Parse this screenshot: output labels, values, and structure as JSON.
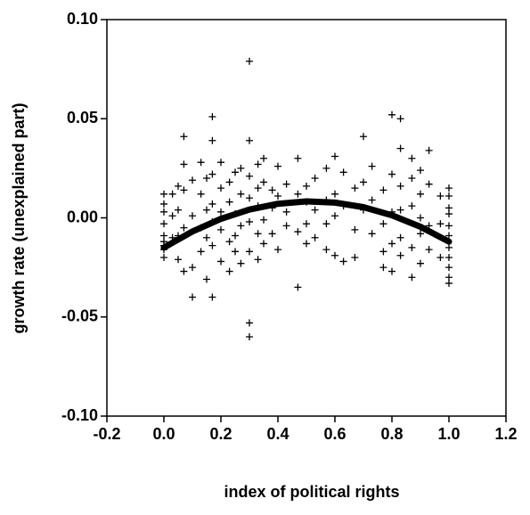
{
  "chart_data": {
    "type": "scatter",
    "xlabel": "index of political rights",
    "ylabel": "growth rate (unexplained part)",
    "xlim": [
      -0.2,
      1.2
    ],
    "ylim": [
      -0.1,
      0.1
    ],
    "xticks": [
      -0.2,
      {
        "value": 0,
        "label": "0.0"
      },
      0.2,
      0.4,
      0.6,
      0.8,
      {
        "value": 1,
        "label": "1.0"
      },
      1.2
    ],
    "yticks": [
      {
        "value": -0.1,
        "label": "-0.10"
      },
      -0.05,
      {
        "value": 0,
        "label": "0.00"
      },
      0.05,
      {
        "value": 0.1,
        "label": "0.10"
      }
    ],
    "series": [
      {
        "type": "scatter",
        "color": "#000000",
        "x": [
          0,
          0,
          0,
          0,
          0,
          0,
          0,
          0,
          0,
          0.03,
          0.03,
          0.03,
          0.05,
          0.05,
          0.05,
          0.05,
          0.07,
          0.07,
          0.07,
          0.07,
          0.07,
          0.1,
          0.1,
          0.1,
          0.1,
          0.13,
          0.13,
          0.13,
          0.13,
          0.15,
          0.15,
          0.15,
          0.15,
          0.17,
          0.17,
          0.17,
          0.17,
          0.17,
          0.17,
          0.17,
          0.2,
          0.2,
          0.2,
          0.2,
          0.2,
          0.23,
          0.23,
          0.23,
          0.23,
          0.25,
          0.25,
          0.25,
          0.25,
          0.27,
          0.27,
          0.27,
          0.27,
          0.3,
          0.3,
          0.3,
          0.3,
          0.3,
          0.3,
          0.3,
          0.3,
          0.33,
          0.33,
          0.33,
          0.33,
          0.33,
          0.35,
          0.35,
          0.35,
          0.35,
          0.38,
          0.38,
          0.38,
          0.4,
          0.4,
          0.4,
          0.43,
          0.43,
          0.43,
          0.47,
          0.47,
          0.47,
          0.47,
          0.5,
          0.5,
          0.5,
          0.5,
          0.53,
          0.53,
          0.53,
          0.57,
          0.57,
          0.57,
          0.57,
          0.6,
          0.6,
          0.6,
          0.6,
          0.63,
          0.63,
          0.63,
          0.67,
          0.67,
          0.67,
          0.7,
          0.7,
          0.7,
          0.73,
          0.73,
          0.73,
          0.77,
          0.77,
          0.77,
          0.77,
          0.8,
          0.8,
          0.8,
          0.8,
          0.8,
          0.83,
          0.83,
          0.83,
          0.83,
          0.83,
          0.83,
          0.87,
          0.87,
          0.87,
          0.87,
          0.87,
          0.9,
          0.9,
          0.9,
          0.9,
          0.9,
          0.93,
          0.93,
          0.93,
          0.93,
          0.97,
          0.97,
          0.97,
          1,
          1,
          1,
          1,
          1,
          1,
          1,
          1,
          1,
          1,
          1
        ],
        "values": [
          0.012,
          0.007,
          0.003,
          -0.003,
          -0.009,
          -0.012,
          -0.014,
          -0.016,
          -0.02,
          0.012,
          0.001,
          -0.01,
          0.016,
          0.004,
          -0.009,
          -0.021,
          0.041,
          0.027,
          0.014,
          -0.005,
          -0.027,
          0.019,
          0.001,
          -0.025,
          -0.04,
          0.028,
          0.012,
          -0.005,
          -0.017,
          0.02,
          0.004,
          -0.01,
          -0.031,
          0.051,
          0.039,
          0.022,
          0.007,
          -0.002,
          -0.014,
          -0.04,
          0.028,
          0.015,
          0.003,
          -0.006,
          -0.022,
          0.018,
          0.008,
          -0.012,
          -0.027,
          0.023,
          0.002,
          -0.009,
          -0.017,
          0.025,
          0.012,
          -0.004,
          -0.023,
          0.079,
          0.039,
          0.021,
          0.01,
          -0.002,
          -0.017,
          -0.053,
          -0.06,
          0.027,
          0.015,
          0.006,
          -0.008,
          -0.021,
          0.03,
          0.018,
          -0.001,
          -0.013,
          0.014,
          0.005,
          -0.008,
          0.026,
          0.011,
          -0.016,
          0.017,
          0.003,
          -0.004,
          0.03,
          0.012,
          -0.007,
          -0.035,
          0.016,
          0.008,
          -0.003,
          -0.013,
          0.02,
          0.004,
          -0.01,
          0.025,
          0.009,
          -0.003,
          -0.016,
          0.031,
          0.012,
          0.001,
          -0.019,
          0.023,
          0.006,
          -0.022,
          0.015,
          -0.006,
          -0.02,
          0.041,
          0.018,
          0.004,
          0.026,
          0.009,
          -0.008,
          0.014,
          -0.003,
          -0.017,
          -0.025,
          0.052,
          0.022,
          0.003,
          -0.013,
          -0.027,
          0.05,
          0.035,
          0.016,
          0.004,
          -0.01,
          -0.019,
          0.03,
          0.02,
          0.006,
          -0.015,
          -0.03,
          0.024,
          0.012,
          0,
          -0.008,
          -0.023,
          0.034,
          0.017,
          -0.004,
          -0.016,
          0.011,
          -0.003,
          -0.02,
          0.015,
          0.011,
          0.005,
          0.002,
          -0.004,
          -0.009,
          -0.015,
          -0.02,
          -0.025,
          -0.03,
          -0.033
        ]
      },
      {
        "type": "line",
        "color": "#000000",
        "x": [
          0,
          0.1,
          0.2,
          0.3,
          0.4,
          0.5,
          0.6,
          0.7,
          0.8,
          0.9,
          1
        ],
        "values": [
          -0.015,
          -0.0069,
          -0.0005,
          0.0042,
          0.0071,
          0.0083,
          0.0077,
          0.0054,
          0.0013,
          -0.0045,
          -0.012
        ]
      }
    ]
  }
}
